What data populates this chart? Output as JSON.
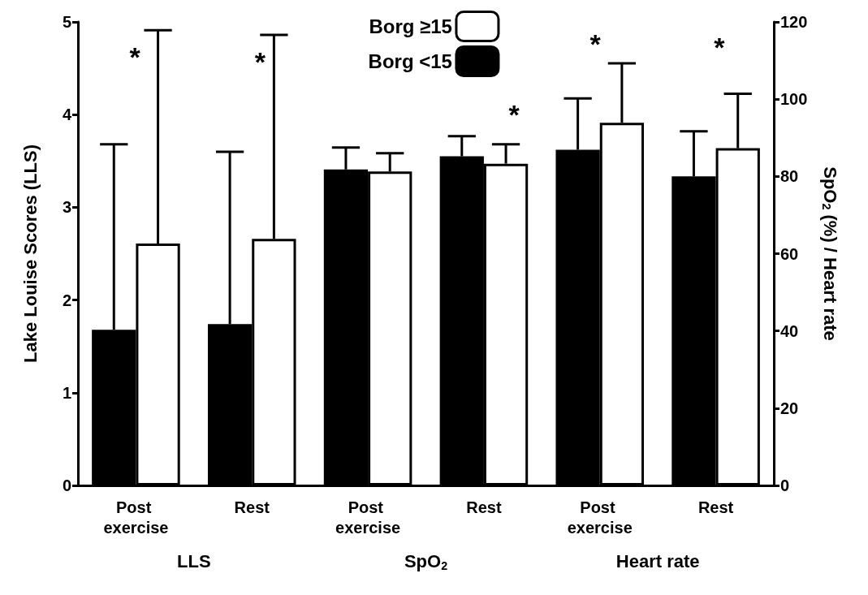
{
  "chart_data": {
    "type": "bar",
    "categories": [
      "Post exercise",
      "Rest",
      "Post exercise",
      "Rest",
      "Post exercise",
      "Rest"
    ],
    "series": [
      {
        "name": "Borg <15",
        "color": "#000000",
        "values": [
          1.68,
          1.74,
          null,
          null,
          null,
          null
        ],
        "errors": [
          [
            1.68,
            3.68
          ],
          [
            1.74,
            3.6
          ],
          null,
          null,
          null,
          null
        ]
      },
      {
        "name": "Borg ≥15",
        "color": "#ffffff",
        "values": [
          2.61,
          2.66,
          null,
          null,
          null,
          null
        ],
        "errors": [
          [
            2.61,
            4.91
          ],
          [
            2.66,
            4.86
          ],
          null,
          null,
          null,
          null
        ]
      },
      {
        "color": "#000000",
        "axis": "y2",
        "values": [
          null,
          null,
          81.8,
          85.2,
          86.9,
          80
        ],
        "errors": [
          null,
          null,
          [
            81.8,
            87.5
          ],
          [
            85.2,
            90.4
          ],
          [
            86.9,
            100.2
          ],
          [
            80,
            91.7
          ]
        ]
      },
      {
        "color": "#ffffff",
        "axis": "y2",
        "values": [
          null,
          null,
          81.3,
          83.3,
          93.9,
          87.3
        ],
        "errors": [
          null,
          null,
          [
            81.3,
            86
          ],
          [
            83.3,
            88.3
          ],
          [
            93.9,
            109.3
          ],
          [
            87.3,
            101.4
          ]
        ]
      }
    ],
    "ylabel": "Lake Louise Scores (LLS)",
    "y2label": "SpO$_{2}$ (%) / Heart rate",
    "ylim": [
      0,
      5
    ],
    "yticks": [
      0,
      1,
      2,
      3,
      4,
      5
    ],
    "y2lim": [
      0,
      120
    ],
    "y2ticks": [
      0,
      20,
      40,
      60,
      80,
      100,
      120
    ],
    "annotations": [
      "*",
      "*",
      "*",
      "*",
      "*",
      "LLS",
      "SpO$_{2}$",
      "Heart rate"
    ],
    "legend": "top",
    "grid": false
  }
}
